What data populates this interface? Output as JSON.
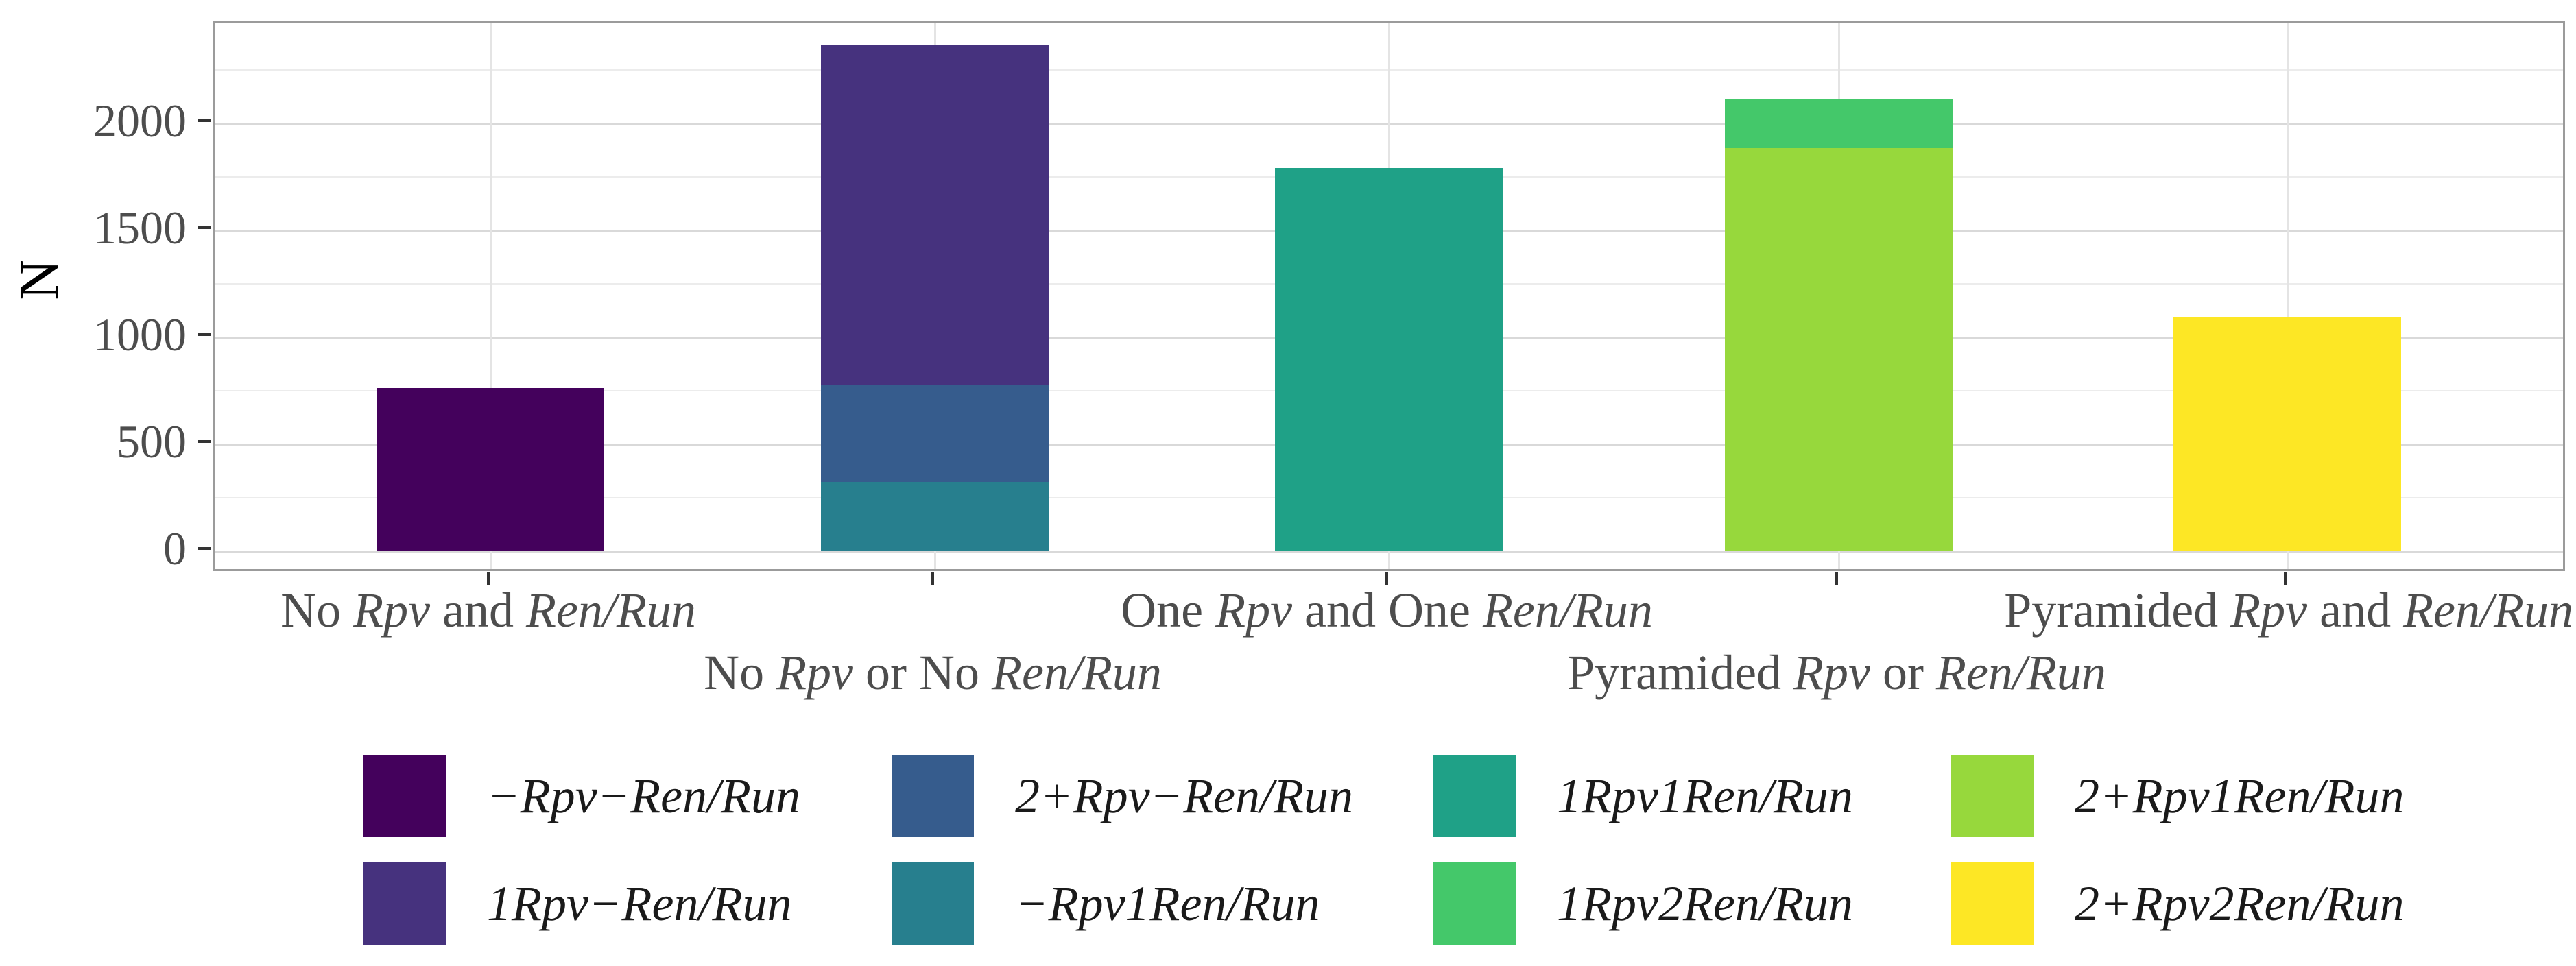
{
  "figure": {
    "background": "#ffffff",
    "kind": "stacked bar chart"
  },
  "y_axis": {
    "title": "N",
    "tick_labels": [
      "0",
      "500",
      "1000",
      "1500",
      "2000"
    ],
    "tick_values": [
      0,
      500,
      1000,
      1500,
      2000
    ],
    "minor_gridline_values": [
      250,
      750,
      1250,
      1750,
      2250
    ]
  },
  "x_axis": {
    "categories": [
      {
        "row": 1,
        "parts": [
          {
            "text": "No "
          },
          {
            "text": "Rpv",
            "italic": true
          },
          {
            "text": " and "
          },
          {
            "text": "Ren/Run",
            "italic": true
          }
        ]
      },
      {
        "row": 2,
        "parts": [
          {
            "text": "No "
          },
          {
            "text": "Rpv",
            "italic": true
          },
          {
            "text": " or No "
          },
          {
            "text": "Ren/Run",
            "italic": true
          }
        ]
      },
      {
        "row": 1,
        "parts": [
          {
            "text": "One "
          },
          {
            "text": "Rpv",
            "italic": true
          },
          {
            "text": " and One "
          },
          {
            "text": "Ren/Run",
            "italic": true
          }
        ]
      },
      {
        "row": 2,
        "parts": [
          {
            "text": "Pyramided "
          },
          {
            "text": "Rpv",
            "italic": true
          },
          {
            "text": " or "
          },
          {
            "text": "Ren/Run",
            "italic": true
          }
        ]
      },
      {
        "row": 1,
        "parts": [
          {
            "text": "Pyramided "
          },
          {
            "text": "Rpv",
            "italic": true
          },
          {
            "text": " and "
          },
          {
            "text": "Ren/Run",
            "italic": true
          }
        ]
      }
    ]
  },
  "legend": {
    "rows": [
      [
        {
          "label": "−Rpv−Ren/Run",
          "color": "#44015c"
        },
        {
          "label": "2+Rpv−Ren/Run",
          "color": "#365c8d"
        },
        {
          "label": "1Rpv1Ren/Run",
          "color": "#1fa187"
        },
        {
          "label": "2+Rpv1Ren/Run",
          "color": "#97d83c"
        }
      ],
      [
        {
          "label": "1Rpv−Ren/Run",
          "color": "#46327e"
        },
        {
          "label": "−Rpv1Ren/Run",
          "color": "#277f8e"
        },
        {
          "label": "1Rpv2Ren/Run",
          "color": "#44c86a"
        },
        {
          "label": "2+Rpv2Ren/Run",
          "color": "#fde725"
        }
      ]
    ]
  },
  "chart_data": {
    "type": "bar",
    "stacked": true,
    "stack_note": "series listed earlier are drawn on top of later ones within a bar",
    "title": "",
    "xlabel": "",
    "ylabel": "N",
    "ylim": [
      0,
      2465
    ],
    "yticks": [
      0,
      500,
      1000,
      1500,
      2000
    ],
    "grid": "major and minor horizontal, major vertical",
    "legend_position": "bottom, 2 rows x 4 columns",
    "categories": [
      "No Rpv and Ren/Run",
      "No Rpv or No Ren/Run",
      "One Rpv and One Ren/Run",
      "Pyramided Rpv or Ren/Run",
      "Pyramided Rpv and Ren/Run"
    ],
    "series": [
      {
        "name": "−Rpv−Ren/Run",
        "color": "#44015c",
        "values": [
          760,
          0,
          0,
          0,
          0
        ]
      },
      {
        "name": "1Rpv−Ren/Run",
        "color": "#46327e",
        "values": [
          0,
          1590,
          0,
          0,
          0
        ]
      },
      {
        "name": "2+Rpv−Ren/Run",
        "color": "#365c8d",
        "values": [
          0,
          455,
          0,
          0,
          0
        ]
      },
      {
        "name": "−Rpv1Ren/Run",
        "color": "#277f8e",
        "values": [
          0,
          320,
          0,
          0,
          0
        ]
      },
      {
        "name": "1Rpv1Ren/Run",
        "color": "#1fa187",
        "values": [
          0,
          0,
          1790,
          0,
          0
        ]
      },
      {
        "name": "1Rpv2Ren/Run",
        "color": "#44c86a",
        "values": [
          0,
          0,
          0,
          230,
          0
        ]
      },
      {
        "name": "2+Rpv1Ren/Run",
        "color": "#97d83c",
        "values": [
          0,
          0,
          0,
          1880,
          0
        ]
      },
      {
        "name": "2+Rpv2Ren/Run",
        "color": "#fde725",
        "values": [
          0,
          0,
          0,
          0,
          1090
        ]
      }
    ],
    "bar_totals": [
      760,
      2365,
      1790,
      2110,
      1090
    ]
  }
}
